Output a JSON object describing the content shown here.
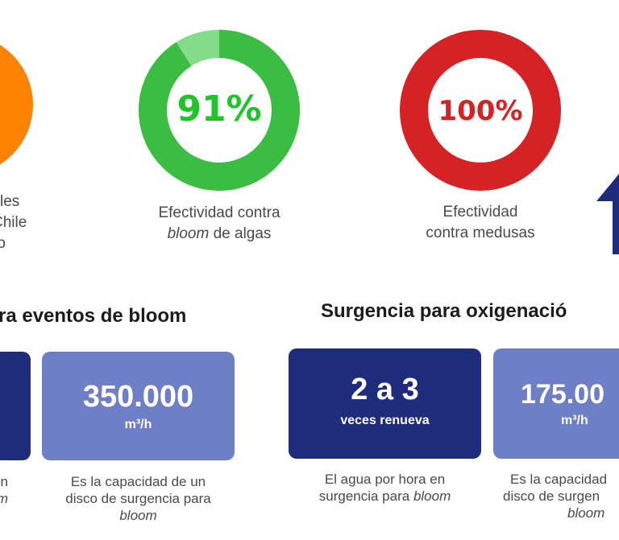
{
  "colors": {
    "orange": "#ff8200",
    "green": "#3bbd44",
    "green_light": "#84db8a",
    "green_text": "#1ec42a",
    "red": "#d42225",
    "navy": "#1f2c7c",
    "periwinkle": "#6f7fc7"
  },
  "stats": [
    {
      "caption_lines": [
        "les",
        "Chile",
        "ro"
      ]
    },
    {
      "value": "91%",
      "fraction": 0.91,
      "caption_line1": "Efectividad contra",
      "caption_italic": "bloom",
      "caption_rest": " de algas"
    },
    {
      "value": "100%",
      "fraction": 1.0,
      "caption_line1": "Efectividad",
      "caption_line2": "contra medusas"
    }
  ],
  "sections": [
    {
      "title": "ra eventos de bloom",
      "cards": [
        {
          "desc_line1": "n",
          "desc_italic": "om"
        },
        {
          "value": "350.000",
          "unit": "m³/h",
          "desc_line1": "Es la capacidad de un",
          "desc_line2": "disco de surgencia para",
          "desc_italic": "bloom"
        }
      ]
    },
    {
      "title": "Surgencia para oxigenació",
      "cards": [
        {
          "value": "2 a 3",
          "unit": "veces renueva",
          "desc_line1": "El agua por hora en",
          "desc_line2": "surgencia para ",
          "desc_italic": "bloom"
        },
        {
          "value": "175.00",
          "unit": "m³/h",
          "desc_line1": "Es la capacidad",
          "desc_line2": "disco de surgen",
          "desc_italic": "bloom"
        }
      ]
    }
  ]
}
